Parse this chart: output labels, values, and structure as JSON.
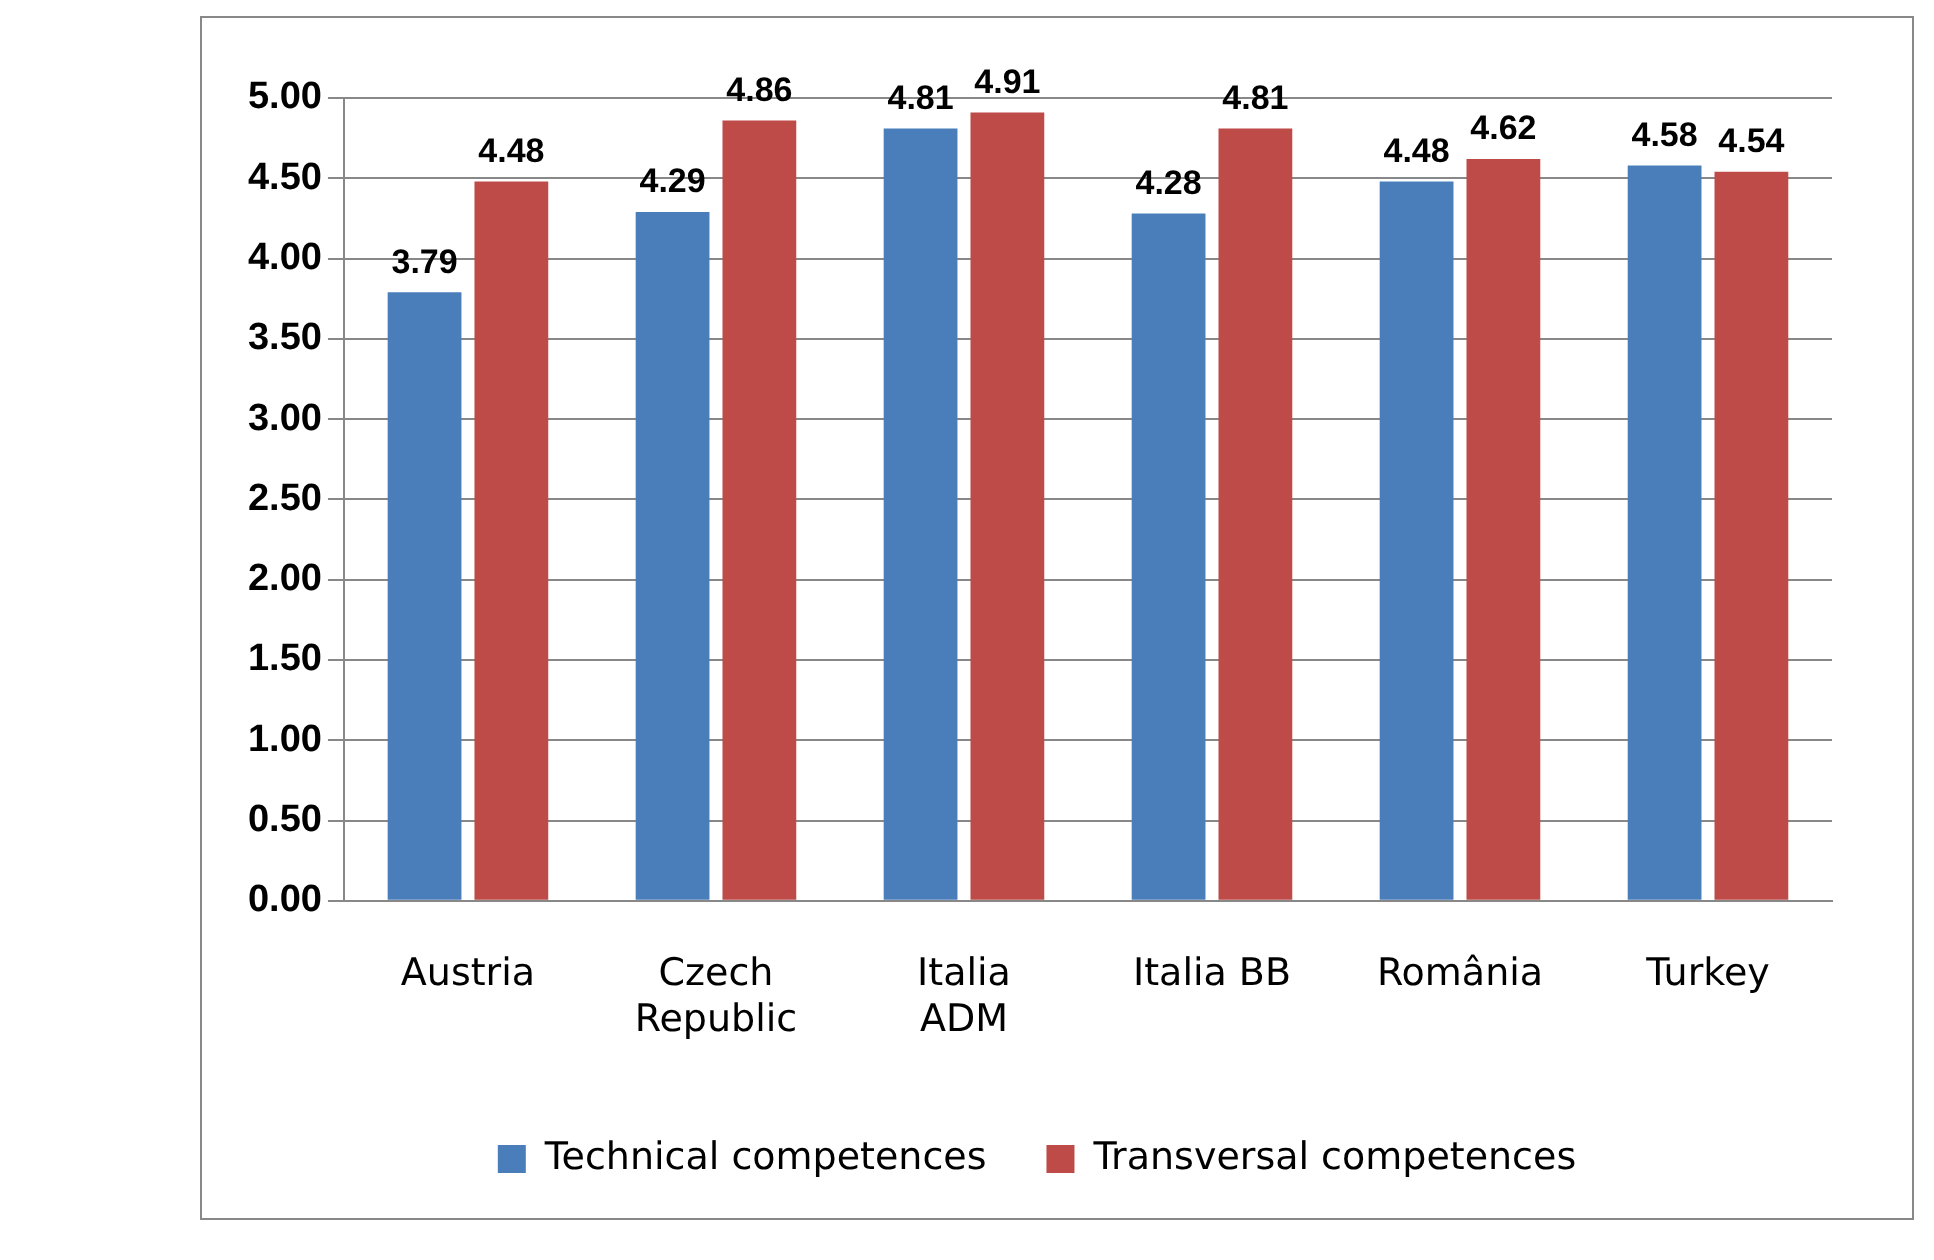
{
  "chart_data": {
    "type": "bar",
    "categories": [
      "Austria",
      "Czech\nRepublic",
      "Italia\nADM",
      "Italia BB",
      "România",
      "Turkey"
    ],
    "series": [
      {
        "name": "Technical competences",
        "color": "#4a7ebb",
        "values": [
          3.79,
          4.29,
          4.81,
          4.28,
          4.48,
          4.58
        ]
      },
      {
        "name": "Transversal competences",
        "color": "#be4b48",
        "values": [
          4.48,
          4.86,
          4.91,
          4.81,
          4.62,
          4.54
        ]
      }
    ],
    "ylim": [
      0,
      5
    ],
    "yticks": [
      {
        "value": 0,
        "label": "0.00"
      },
      {
        "value": 0.5,
        "label": "0.50"
      },
      {
        "value": 1,
        "label": "1.00"
      },
      {
        "value": 1.5,
        "label": "1.50"
      },
      {
        "value": 2,
        "label": "2.00"
      },
      {
        "value": 2.5,
        "label": "2.50"
      },
      {
        "value": 3,
        "label": "3.00"
      },
      {
        "value": 3.5,
        "label": "3.50"
      },
      {
        "value": 4,
        "label": "4.00"
      },
      {
        "value": 4.5,
        "label": "4.50"
      },
      {
        "value": 5,
        "label": "5.00"
      }
    ],
    "grid": "y",
    "legend": "bottom",
    "data_labels": true
  }
}
